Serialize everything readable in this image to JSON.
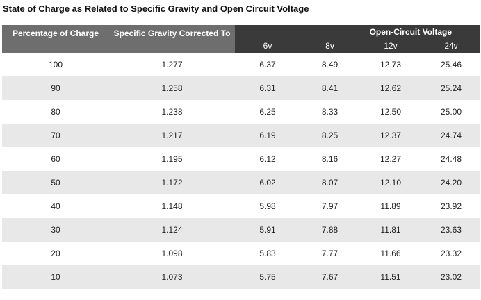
{
  "title": "State of Charge as Related to Specific Gravity and Open Circuit Voltage",
  "headers": {
    "percentage": "Percentage of Charge",
    "gravity": "Specific Gravity Corrected To",
    "ocv": "Open-Circuit Voltage",
    "voltages": [
      "6v",
      "8v",
      "12v",
      "24v"
    ]
  },
  "rows": [
    [
      "100",
      "1.277",
      "6.37",
      "8.49",
      "12.73",
      "25.46"
    ],
    [
      "90",
      "1.258",
      "6.31",
      "8.41",
      "12.62",
      "25.24"
    ],
    [
      "80",
      "1.238",
      "6.25",
      "8.33",
      "12.50",
      "25.00"
    ],
    [
      "70",
      "1.217",
      "6.19",
      "8.25",
      "12.37",
      "24.74"
    ],
    [
      "60",
      "1.195",
      "6.12",
      "8.16",
      "12.27",
      "24.48"
    ],
    [
      "50",
      "1.172",
      "6.02",
      "8.07",
      "12.10",
      "24.20"
    ],
    [
      "40",
      "1.148",
      "5.98",
      "7.97",
      "11.89",
      "23.92"
    ],
    [
      "30",
      "1.124",
      "5.91",
      "7.88",
      "11.81",
      "23.63"
    ],
    [
      "20",
      "1.098",
      "5.83",
      "7.77",
      "11.66",
      "23.32"
    ],
    [
      "10",
      "1.073",
      "5.75",
      "7.67",
      "11.51",
      "23.02"
    ]
  ],
  "colors": {
    "header_gray": "#6e6e6e",
    "header_dark": "#3a3a3a",
    "row_stripe": "#e8e8e8",
    "header_text": "#ffffff"
  }
}
